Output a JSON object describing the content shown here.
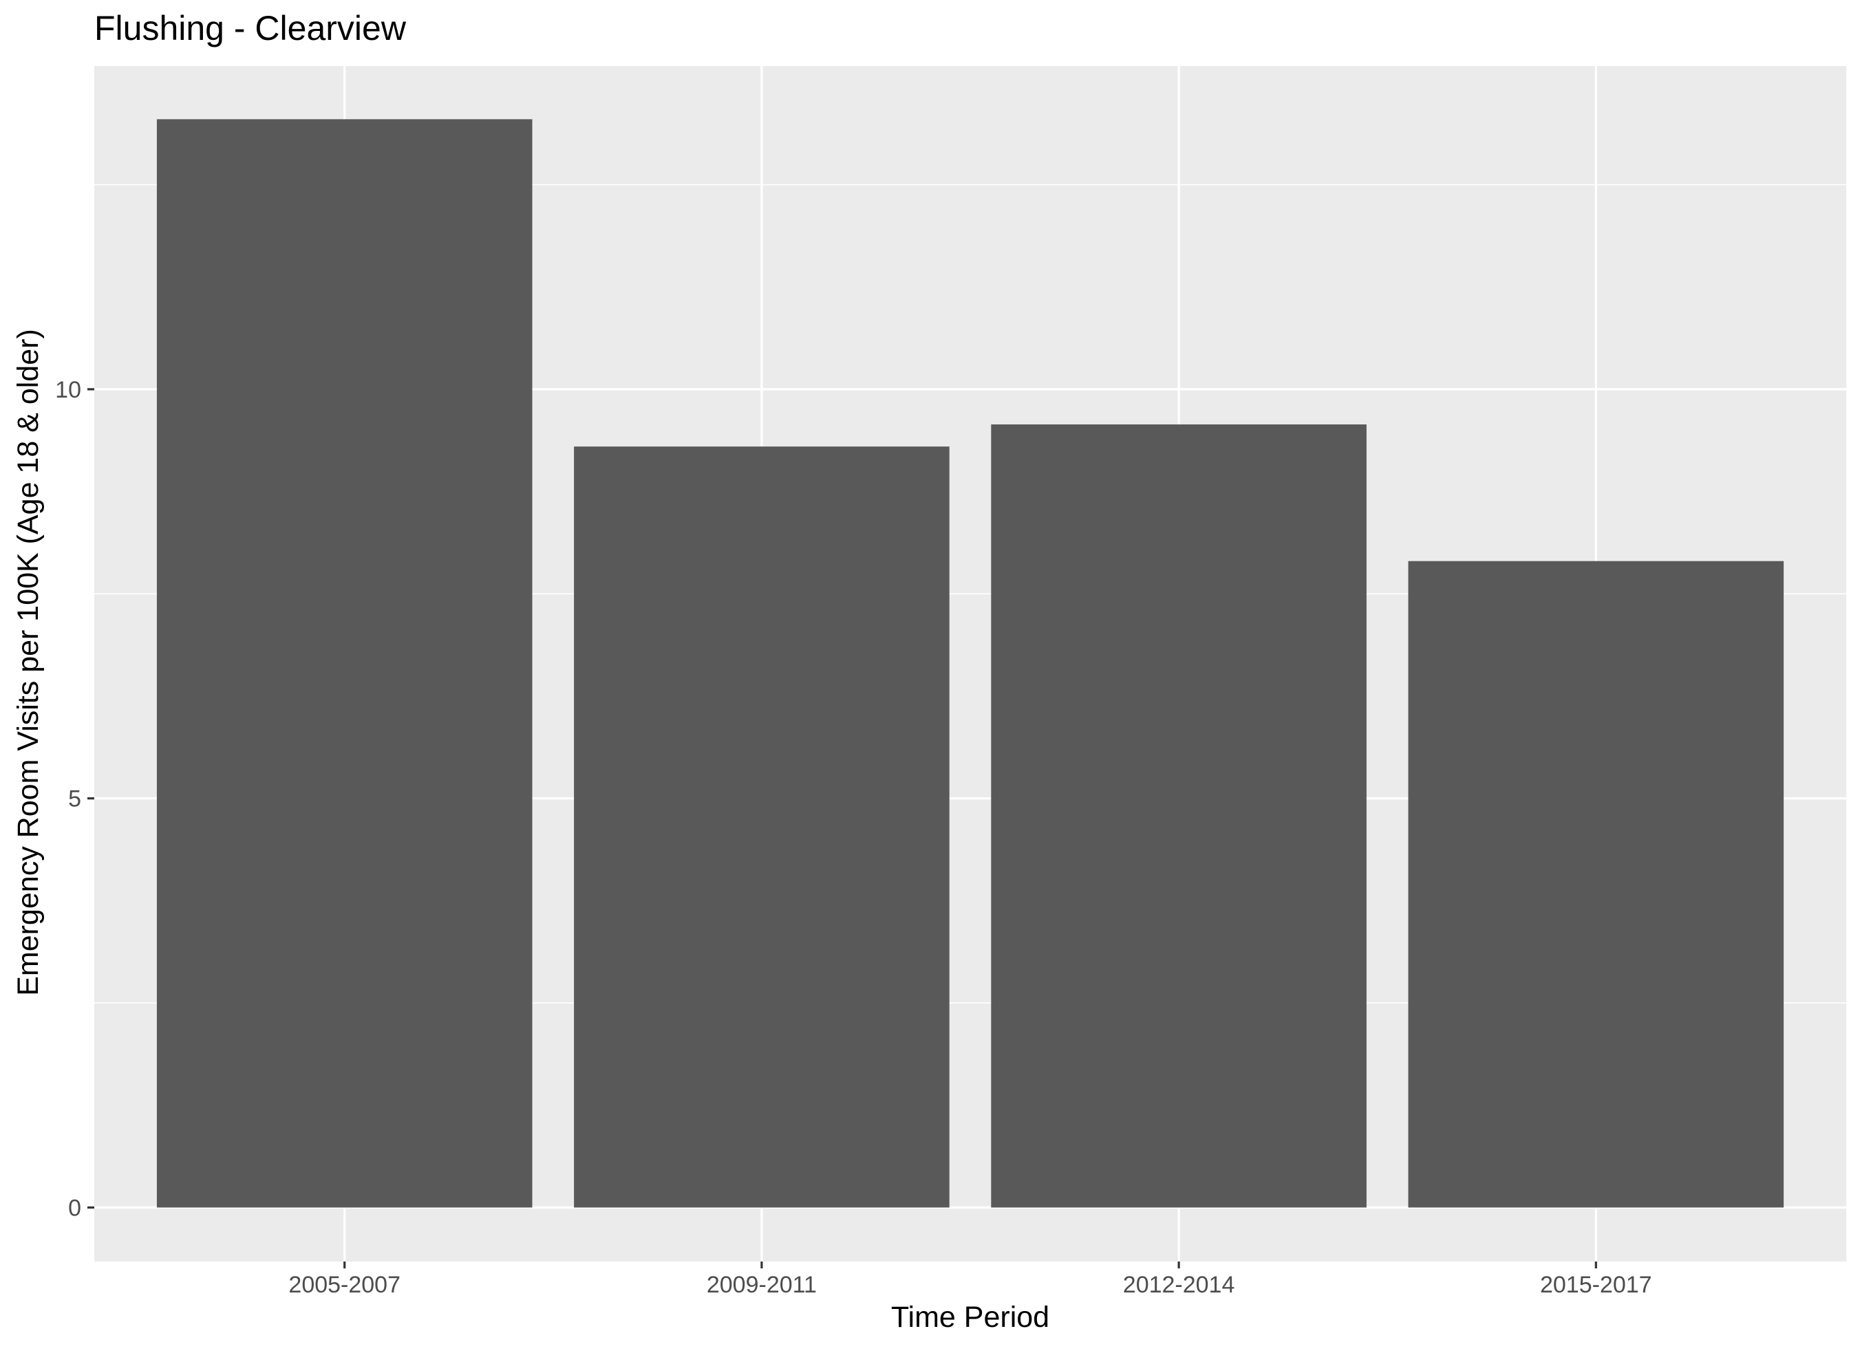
{
  "chart_data": {
    "type": "bar",
    "title": "Flushing - Clearview",
    "xlabel": "Time Period",
    "ylabel": "Emergency Room Visits per 100K (Age 18 & older)",
    "categories": [
      "2005-2007",
      "2009-2011",
      "2012-2014",
      "2015-2017"
    ],
    "values": [
      13.3,
      9.3,
      9.57,
      7.9
    ],
    "ylim": [
      -0.66,
      13.95
    ],
    "yticks": [
      0,
      5,
      10
    ],
    "yticklabels": [
      "0",
      "5",
      "10"
    ],
    "grid": true,
    "legend": "none",
    "colors": {
      "panel": "#ebebeb",
      "bar": "#595959",
      "grid": "#ffffff",
      "tick_text": "#4d4d4d",
      "tick_mark": "#333333",
      "text": "#000000"
    }
  }
}
